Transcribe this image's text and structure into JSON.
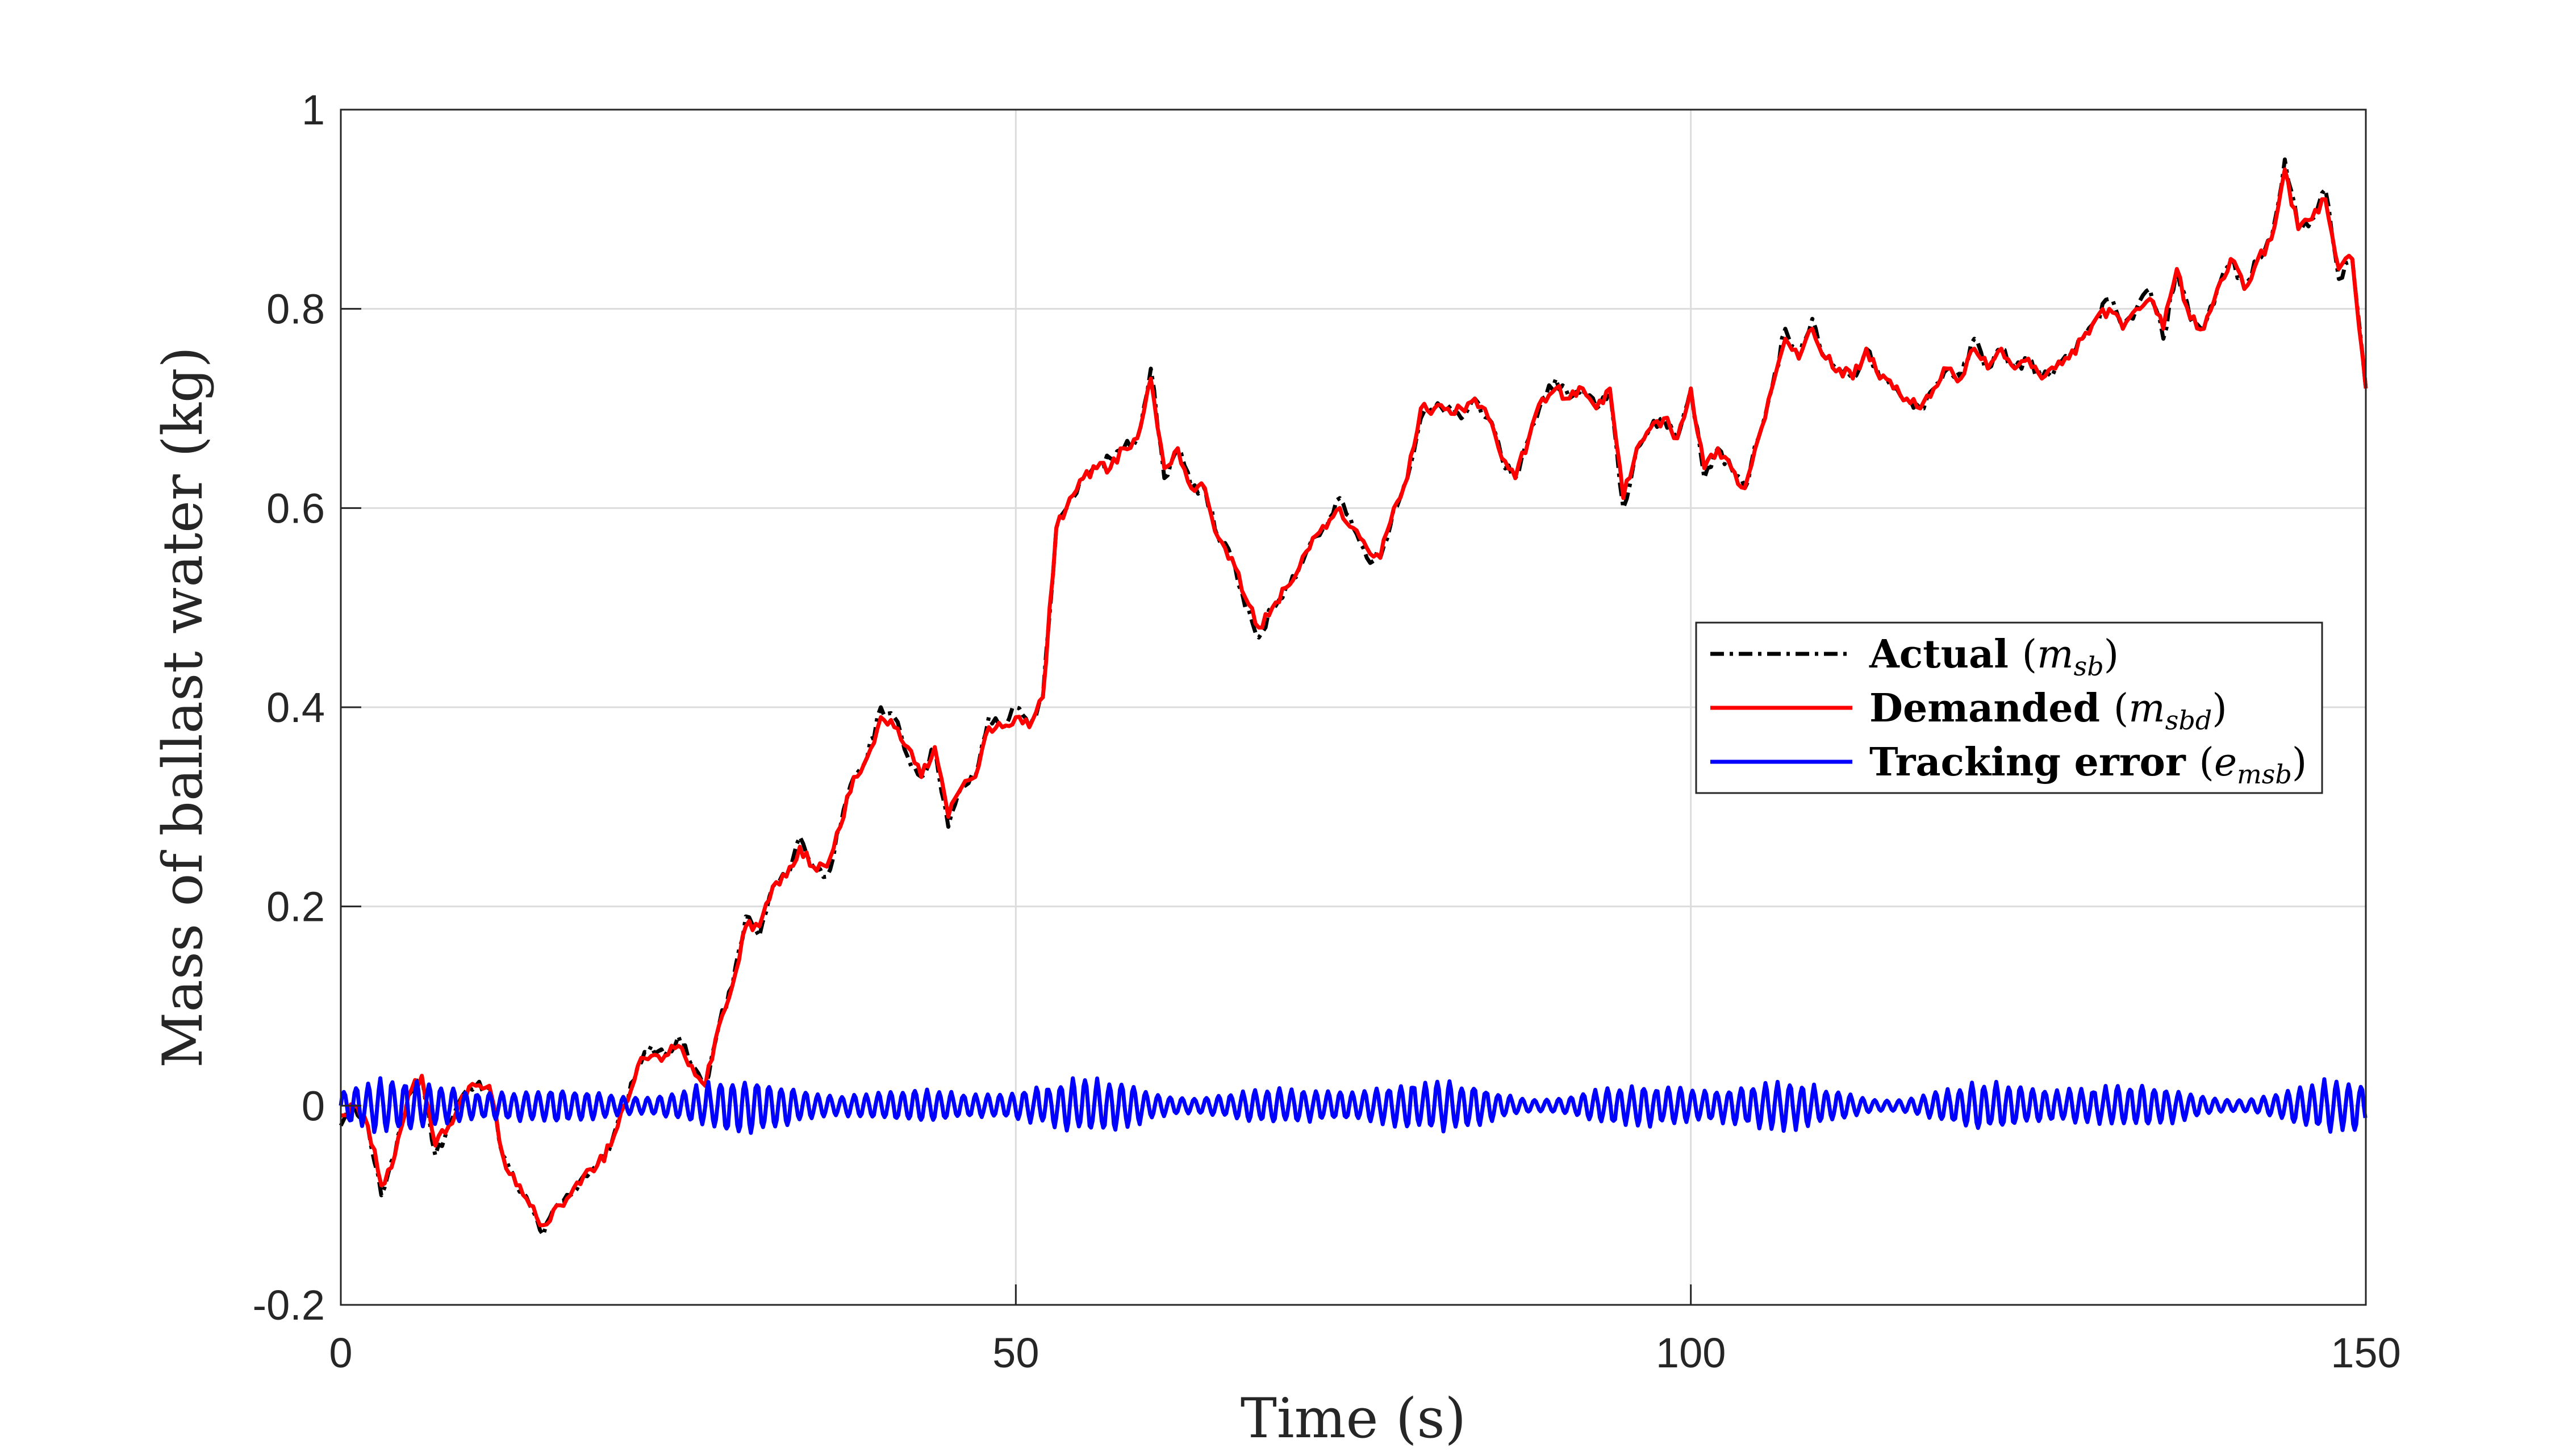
{
  "chart_data": {
    "type": "line",
    "xlabel": "Time (s)",
    "ylabel": "Mass of ballast water (kg)",
    "xlim": [
      0,
      150
    ],
    "ylim": [
      -0.2,
      1
    ],
    "x_ticks": [
      0,
      50,
      100,
      150
    ],
    "x_tick_labels": [
      "0",
      "50",
      "100",
      "150"
    ],
    "y_ticks": [
      -0.2,
      0,
      0.2,
      0.4,
      0.6,
      0.8,
      1
    ],
    "y_tick_labels": [
      "-0.2",
      "0",
      "0.2",
      "0.4",
      "0.6",
      "0.8",
      "1"
    ],
    "grid": true,
    "legend_position": "center-right",
    "series": [
      {
        "name": "Actual",
        "legend_bold": "Actual",
        "legend_math": "m",
        "legend_sub": "sb",
        "color": "#000000",
        "style": "dash-dot",
        "x": [
          0,
          1,
          2,
          3,
          4,
          5,
          6,
          7,
          8,
          9,
          10,
          11,
          12,
          13,
          14,
          15,
          16,
          17,
          18,
          19,
          20,
          21,
          22,
          23,
          24,
          25,
          26,
          27,
          28,
          29,
          30,
          31,
          32,
          33,
          34,
          35,
          36,
          37,
          38,
          39,
          40,
          41,
          42,
          43,
          44,
          45,
          46,
          47,
          48,
          49,
          50,
          51,
          52,
          53,
          54,
          55,
          56,
          57,
          58,
          59,
          60,
          61,
          62,
          63,
          64,
          65,
          66,
          67,
          68,
          69,
          70,
          71,
          72,
          73,
          74,
          75,
          76,
          77,
          78,
          79,
          80,
          81,
          82,
          83,
          84,
          85,
          86,
          87,
          88,
          89,
          90,
          91,
          92,
          93,
          94,
          95,
          96,
          97,
          98,
          99,
          100,
          101,
          102,
          103,
          104,
          105,
          106,
          107,
          108,
          109,
          110,
          111,
          112,
          113,
          114,
          115,
          116,
          117,
          118,
          119,
          120,
          121,
          122,
          123,
          124,
          125,
          126,
          127,
          128,
          129,
          130,
          131,
          132,
          133,
          134,
          135,
          136,
          137,
          138,
          139,
          140,
          141,
          142,
          143,
          144,
          145,
          146,
          147,
          148,
          149,
          150
        ],
        "values": [
          -0.02,
          0.0,
          -0.02,
          -0.09,
          -0.05,
          0.01,
          0.03,
          -0.05,
          -0.02,
          0.01,
          0.02,
          0.02,
          -0.05,
          -0.08,
          -0.1,
          -0.13,
          -0.1,
          -0.09,
          -0.07,
          -0.06,
          -0.04,
          0.0,
          0.04,
          0.06,
          0.05,
          0.07,
          0.04,
          0.02,
          0.08,
          0.12,
          0.19,
          0.17,
          0.22,
          0.23,
          0.27,
          0.24,
          0.23,
          0.28,
          0.33,
          0.35,
          0.4,
          0.39,
          0.35,
          0.33,
          0.36,
          0.28,
          0.32,
          0.33,
          0.39,
          0.38,
          0.4,
          0.38,
          0.41,
          0.58,
          0.61,
          0.63,
          0.64,
          0.65,
          0.66,
          0.67,
          0.74,
          0.63,
          0.66,
          0.62,
          0.62,
          0.57,
          0.55,
          0.5,
          0.47,
          0.5,
          0.52,
          0.54,
          0.57,
          0.58,
          0.61,
          0.58,
          0.55,
          0.55,
          0.6,
          0.63,
          0.69,
          0.7,
          0.7,
          0.69,
          0.71,
          0.69,
          0.65,
          0.63,
          0.67,
          0.71,
          0.73,
          0.71,
          0.72,
          0.7,
          0.72,
          0.6,
          0.66,
          0.68,
          0.69,
          0.67,
          0.72,
          0.63,
          0.66,
          0.64,
          0.62,
          0.67,
          0.72,
          0.78,
          0.75,
          0.79,
          0.75,
          0.74,
          0.73,
          0.76,
          0.73,
          0.72,
          0.71,
          0.7,
          0.72,
          0.74,
          0.73,
          0.77,
          0.74,
          0.76,
          0.74,
          0.75,
          0.73,
          0.74,
          0.75,
          0.77,
          0.79,
          0.81,
          0.78,
          0.8,
          0.82,
          0.77,
          0.84,
          0.79,
          0.78,
          0.82,
          0.85,
          0.82,
          0.85,
          0.87,
          0.95,
          0.88,
          0.89,
          0.92,
          0.83,
          0.85,
          0.72
        ]
      },
      {
        "name": "Demanded",
        "legend_bold": "Demanded",
        "legend_math": "m",
        "legend_sub": "sbd",
        "color": "#ff0000",
        "style": "solid",
        "x": [
          0,
          1,
          2,
          3,
          4,
          5,
          6,
          7,
          8,
          9,
          10,
          11,
          12,
          13,
          14,
          15,
          16,
          17,
          18,
          19,
          20,
          21,
          22,
          23,
          24,
          25,
          26,
          27,
          28,
          29,
          30,
          31,
          32,
          33,
          34,
          35,
          36,
          37,
          38,
          39,
          40,
          41,
          42,
          43,
          44,
          45,
          46,
          47,
          48,
          49,
          50,
          51,
          52,
          53,
          54,
          55,
          56,
          57,
          58,
          59,
          60,
          61,
          62,
          63,
          64,
          65,
          66,
          67,
          68,
          69,
          70,
          71,
          72,
          73,
          74,
          75,
          76,
          77,
          78,
          79,
          80,
          81,
          82,
          83,
          84,
          85,
          86,
          87,
          88,
          89,
          90,
          91,
          92,
          93,
          94,
          95,
          96,
          97,
          98,
          99,
          100,
          101,
          102,
          103,
          104,
          105,
          106,
          107,
          108,
          109,
          110,
          111,
          112,
          113,
          114,
          115,
          116,
          117,
          118,
          119,
          120,
          121,
          122,
          123,
          124,
          125,
          126,
          127,
          128,
          129,
          130,
          131,
          132,
          133,
          134,
          135,
          136,
          137,
          138,
          139,
          140,
          141,
          142,
          143,
          144,
          145,
          146,
          147,
          148,
          149,
          150
        ],
        "values": [
          -0.01,
          0.0,
          -0.02,
          -0.08,
          -0.05,
          0.01,
          0.03,
          -0.04,
          -0.02,
          0.01,
          0.02,
          0.02,
          -0.05,
          -0.08,
          -0.1,
          -0.12,
          -0.1,
          -0.09,
          -0.07,
          -0.06,
          -0.04,
          0.0,
          0.04,
          0.05,
          0.05,
          0.06,
          0.04,
          0.02,
          0.08,
          0.12,
          0.18,
          0.18,
          0.22,
          0.23,
          0.26,
          0.24,
          0.24,
          0.28,
          0.33,
          0.35,
          0.39,
          0.38,
          0.36,
          0.33,
          0.36,
          0.29,
          0.32,
          0.33,
          0.38,
          0.38,
          0.39,
          0.38,
          0.41,
          0.58,
          0.61,
          0.63,
          0.64,
          0.64,
          0.66,
          0.67,
          0.73,
          0.64,
          0.66,
          0.62,
          0.62,
          0.57,
          0.55,
          0.51,
          0.48,
          0.5,
          0.52,
          0.54,
          0.57,
          0.58,
          0.6,
          0.58,
          0.56,
          0.55,
          0.6,
          0.63,
          0.7,
          0.7,
          0.7,
          0.7,
          0.71,
          0.69,
          0.65,
          0.63,
          0.67,
          0.71,
          0.72,
          0.71,
          0.72,
          0.7,
          0.72,
          0.61,
          0.66,
          0.68,
          0.69,
          0.67,
          0.72,
          0.64,
          0.66,
          0.64,
          0.62,
          0.67,
          0.72,
          0.77,
          0.75,
          0.78,
          0.75,
          0.74,
          0.73,
          0.76,
          0.73,
          0.72,
          0.71,
          0.7,
          0.72,
          0.74,
          0.73,
          0.76,
          0.74,
          0.76,
          0.74,
          0.75,
          0.73,
          0.74,
          0.75,
          0.77,
          0.79,
          0.8,
          0.78,
          0.8,
          0.81,
          0.78,
          0.84,
          0.79,
          0.78,
          0.82,
          0.85,
          0.82,
          0.85,
          0.87,
          0.94,
          0.88,
          0.89,
          0.91,
          0.84,
          0.85,
          0.72
        ]
      },
      {
        "name": "Tracking error",
        "legend_bold": "Tracking error",
        "legend_math": "e",
        "legend_sub": "msb",
        "color": "#0000ff",
        "style": "solid",
        "generated_oscillation": {
          "x_start": 0,
          "x_end": 150,
          "period_s": 0.9,
          "amplitude_range": [
            0.005,
            0.03
          ],
          "mean": 0.0
        }
      }
    ]
  }
}
